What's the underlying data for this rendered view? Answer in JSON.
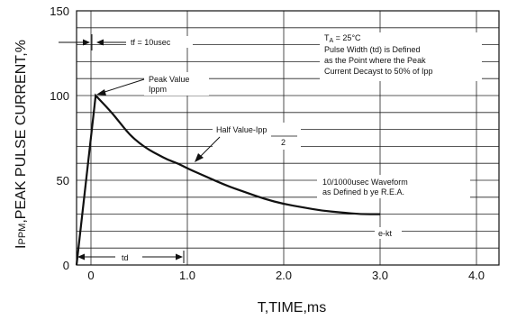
{
  "chart_data": {
    "type": "line",
    "title": "",
    "xlabel": "T,TIME,ms",
    "ylabel_prefix": "I",
    "ylabel_sub": "PPM",
    "ylabel_rest": ",PEAK PULSE CURRENT,%",
    "xlim": [
      0,
      4.0
    ],
    "ylim": [
      0,
      150
    ],
    "x_ticks": [
      "0",
      "1.0",
      "2.0",
      "3.0",
      "4.0"
    ],
    "y_ticks": [
      "0",
      "50",
      "100",
      "150"
    ],
    "grid": true,
    "series": [
      {
        "x": [
          0,
          0.1,
          0.2,
          0.3,
          0.4,
          0.5,
          0.6,
          0.7,
          0.8,
          0.9,
          1.0,
          1.2,
          1.4,
          1.6,
          1.8,
          2.0,
          2.2,
          2.4,
          2.6,
          2.8,
          3.0
        ],
        "y": [
          0,
          100,
          91,
          84,
          77,
          72,
          68,
          65,
          62,
          60,
          57,
          52,
          47,
          43,
          39,
          36,
          34,
          32,
          31,
          30,
          30
        ]
      }
    ],
    "annotations": {
      "tf_label": "tf = 10usec",
      "ta_prefix": "T",
      "ta_sub": "A",
      "ta_rest": " = 25°C",
      "pw_line1": "Pulse Width (td) is Defined",
      "pw_line2": "as the Point where the Peak",
      "pw_line3": "Current Decayst to 50% of Ipp",
      "peak_line1": "Peak Value",
      "peak_line2": "Ippm",
      "half_num": "Half Value-Ipp",
      "half_den": "2",
      "wave_line1": "10/1000usec Waveform",
      "wave_line2": "as Defined b ye R.E.A.",
      "ekt": "e-kt",
      "td": "td"
    }
  }
}
